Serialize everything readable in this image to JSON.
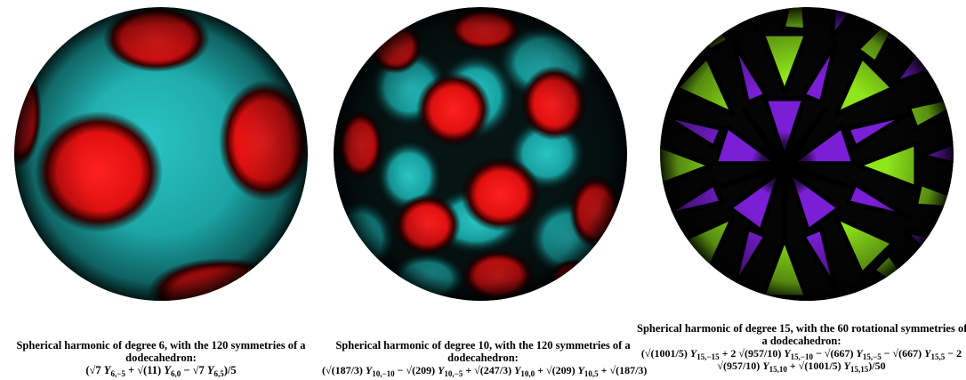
{
  "colors": {
    "background": "#ffffff",
    "panel1_positive": "#ff1a1a",
    "panel1_negative": "#1fb3b3",
    "panel2_positive": "#ff1a1a",
    "panel2_negative": "#1fb3b3",
    "panel3_positive": "#8fe61a",
    "panel3_negative": "#7a1fd6",
    "nodal": "#000000"
  },
  "panels": [
    {
      "caption_title_a": "Spherical harmonic of degree 6, with the 120 symmetries of a",
      "caption_title_b": "dodecahedron:",
      "formula": {
        "t0": "(√7 ",
        "Y1": "Y",
        "s1": "6,−5",
        "t1": " + √(11) ",
        "Y2": "Y",
        "s2": "6,0",
        "t2": " − √7 ",
        "Y3": "Y",
        "s3": "6,5",
        "t3": ")/5"
      }
    },
    {
      "caption_title_a": "Spherical harmonic of degree 10, with the 120 symmetries of a",
      "caption_title_b": "dodecahedron:",
      "formula": {
        "t0": "(√(187/3) ",
        "Y1": "Y",
        "s1": "10,−10",
        "t1": " − √(209) ",
        "Y2": "Y",
        "s2": "10,−5",
        "t2": " + √(247/3) ",
        "Y3": "Y",
        "s3": "10,0",
        "t3": " + √(209) ",
        "Y4": "Y",
        "s4": "10,5",
        "t4": " + √(187/3)"
      }
    },
    {
      "caption_title_a": "Spherical harmonic of degree 15, with the 60 rotational symmetries of",
      "caption_title_b": "a dodecahedron:",
      "formula_line1": {
        "t0": "(√(1001/5) ",
        "Y1": "Y",
        "s1": "15,−15",
        "t1": " + 2 √(957/10) ",
        "Y2": "Y",
        "s2": "15,−10",
        "t2": " − √(667) ",
        "Y3": "Y",
        "s3": "15,−5",
        "t3": " − √(667) ",
        "Y4": "Y",
        "s4": "15,5",
        "t4": " − 2"
      },
      "formula_line2": {
        "t0": "√(957/10) ",
        "Y1": "Y",
        "s1": "15,10",
        "t1": " + √(1001/5) ",
        "Y2": "Y",
        "s2": "15,15",
        "t2": ")/50"
      }
    }
  ]
}
